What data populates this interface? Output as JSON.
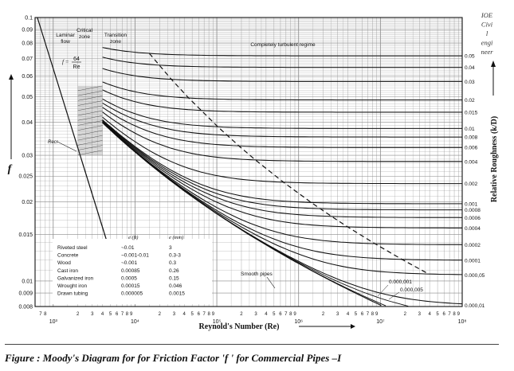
{
  "chart_data": {
    "type": "line",
    "title": "",
    "xlabel": "Reynold's Number (Re)",
    "ylabel": "f",
    "y2label": "Relative Roughness (k/D)",
    "xscale": "log",
    "yscale": "log",
    "xlim": [
      600,
      100000000
    ],
    "ylim": [
      0.008,
      0.1
    ],
    "grid": true,
    "x_decades": [
      "10³",
      "10⁴",
      "10⁵",
      "10⁶",
      "10⁷",
      "10⁸"
    ],
    "x_minor_labels": [
      "7",
      "8",
      "2",
      "3",
      "4",
      "5",
      "6",
      "7",
      "8",
      "9"
    ],
    "y_ticks": [
      "0.1",
      "0.09",
      "0.08",
      "0.07",
      "0.06",
      "0.05",
      "0.04",
      "0.03",
      "0.025",
      "0.02",
      "0.015",
      "0.01",
      "0.009",
      "0.008"
    ],
    "y_tick_values": [
      0.1,
      0.09,
      0.08,
      0.07,
      0.06,
      0.05,
      0.04,
      0.03,
      0.025,
      0.02,
      0.015,
      0.01,
      0.009,
      0.008
    ],
    "roughness_values": [
      0.05,
      0.04,
      0.03,
      0.02,
      0.015,
      0.01,
      0.008,
      0.006,
      0.004,
      0.002,
      0.001,
      0.0008,
      0.0006,
      0.0004,
      0.0002,
      0.0001,
      5e-05,
      1e-05
    ],
    "roughness_labels": [
      "0.05",
      "0.04",
      "0.03",
      "0.02",
      "0.015",
      "0.01",
      "0.008",
      "0.006",
      "0.004",
      "0.002",
      "0.001",
      "0.0008",
      "0.0006",
      "0.0004",
      "0.0002",
      "0.0001",
      "0.000,05",
      "0.000,01"
    ],
    "curve_labels": [
      "0.000,001",
      "0.000,005"
    ],
    "laminar": {
      "label_line1": "f =",
      "label_num": "64",
      "label_den": "Re"
    },
    "zone_labels": {
      "laminar": [
        "Laminar",
        "flow"
      ],
      "critical": [
        "Critical",
        "zone"
      ],
      "transition": [
        "Transition",
        "zone"
      ],
      "turbulent": "Completely turbulent regime",
      "smooth": "Smooth pipes",
      "recr": "Recr"
    },
    "watermark": [
      "IOE",
      "Civi",
      "l",
      "engi",
      "neer"
    ],
    "materials_table": {
      "headers": [
        "e (ft)",
        "e (mm)"
      ],
      "rows": [
        [
          "Riveted steel",
          "~0.01",
          "3"
        ],
        [
          "Concrete",
          "~0.001-0.01",
          "0.3-3"
        ],
        [
          "Wood",
          "~0.001",
          "0.3"
        ],
        [
          "Cast iron",
          "0.00085",
          "0.26"
        ],
        [
          "Galvanized iron",
          "0.0005",
          "0.15"
        ],
        [
          "Wrought iron",
          "0.00015",
          "0.046"
        ],
        [
          "Drawn tubing",
          "0.000005",
          "0.0015"
        ]
      ]
    }
  },
  "caption": "Figure : Moody's Diagram for for Friction Factor 'f ' for Commercial Pipes –I"
}
